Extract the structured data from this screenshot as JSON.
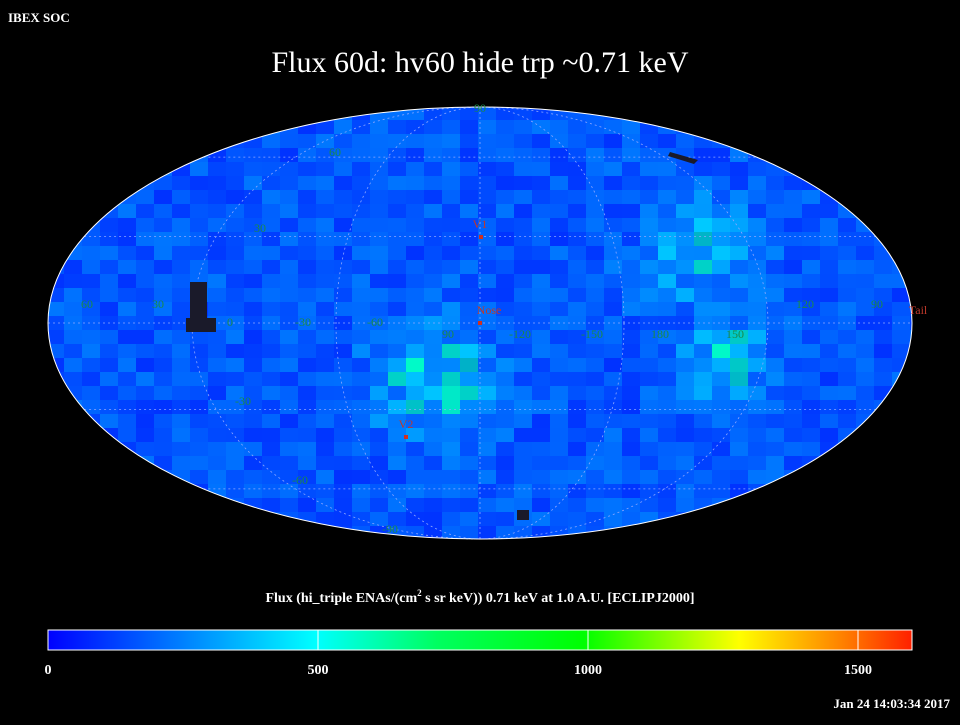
{
  "header": {
    "org": "IBEX SOC",
    "title": "Flux   60d: hv60 hide trp ~0.71 keV",
    "timestamp": "Jan 24 14:03:34 2017"
  },
  "map": {
    "lat_labels": [
      "90",
      "60",
      "30",
      "-30",
      "-60",
      "-90"
    ],
    "lon_labels": [
      "60",
      "30",
      "0",
      "-30",
      "-60",
      "90",
      "-120",
      "-150",
      "180",
      "150",
      "120",
      "90"
    ],
    "markers": [
      "V1",
      "Nose",
      "V2",
      "Tail"
    ]
  },
  "colorbar": {
    "title_before": "Flux (hi_triple ENAs/(cm",
    "title_sup": "2",
    "title_after": " s sr keV))  0.71 keV at 1.0 A.U. [ECLIPJ2000]",
    "lim": [
      0,
      1600
    ],
    "ticks": [
      0,
      500,
      1000,
      1500
    ]
  }
}
